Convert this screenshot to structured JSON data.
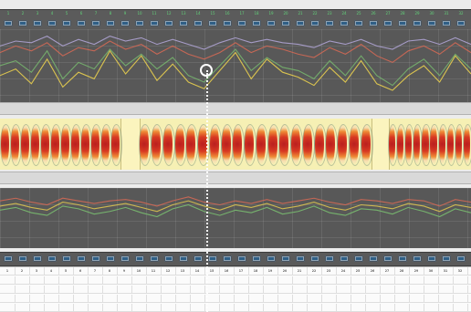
{
  "window": {
    "title": ""
  },
  "top_strip": {
    "green_labels": [
      "1",
      "2",
      "3",
      "4",
      "5",
      "6",
      "7",
      "8",
      "9",
      "10",
      "11",
      "12",
      "13",
      "14",
      "15",
      "16",
      "17",
      "18",
      "19",
      "20",
      "21",
      "22",
      "23",
      "24",
      "25",
      "26",
      "27",
      "28",
      "29",
      "30",
      "31",
      "32"
    ],
    "gray_labels": [
      "",
      "",
      "",
      "",
      "",
      "",
      "",
      "",
      "",
      "",
      "",
      "",
      "",
      "",
      "",
      "",
      "",
      "",
      "",
      "",
      "",
      "",
      "",
      "",
      "",
      "",
      "",
      "",
      "",
      "",
      "",
      ""
    ]
  },
  "mid_strip": {
    "labels": [
      "",
      "",
      "",
      "",
      "",
      "",
      "",
      "",
      "",
      "",
      "",
      "",
      "",
      "",
      "",
      "",
      "",
      "",
      "",
      "",
      "",
      "",
      "",
      "",
      "",
      "",
      "",
      "",
      "",
      "",
      "",
      ""
    ]
  },
  "bottom_strip": {
    "labels": [
      "",
      "",
      "",
      "",
      "",
      "",
      "",
      "",
      "",
      "",
      "",
      "",
      "",
      "",
      "",
      "",
      "",
      "",
      "",
      "",
      "",
      "",
      "",
      "",
      "",
      "",
      "",
      "",
      "",
      "",
      "",
      ""
    ]
  },
  "chart_data": [
    {
      "type": "line",
      "series": [
        {
          "values": [
            14,
            18,
            9,
            24,
            7,
            16,
            12,
            29,
            15,
            26,
            11,
            21,
            10,
            6,
            17,
            28,
            12,
            24,
            16,
            13,
            8,
            19,
            10,
            23,
            9,
            5,
            14,
            20,
            10,
            26,
            15
          ]
        },
        {
          "values": [
            20,
            23,
            16,
            29,
            12,
            22,
            18,
            30,
            20,
            27,
            18,
            25,
            14,
            10,
            20,
            30,
            17,
            25,
            19,
            17,
            12,
            23,
            14,
            26,
            14,
            8,
            18,
            24,
            14,
            27,
            18
          ]
        },
        {
          "values": [
            28,
            32,
            29,
            34,
            26,
            31,
            29,
            35,
            30,
            33,
            27,
            32,
            27,
            24,
            28,
            34,
            28,
            32,
            30,
            27,
            25,
            31,
            27,
            33,
            26,
            22,
            29,
            32,
            27,
            34,
            28
          ]
        },
        {
          "values": [
            32,
            35,
            34,
            38,
            32,
            36,
            33,
            38,
            35,
            37,
            33,
            36,
            33,
            30,
            34,
            37,
            34,
            36,
            34,
            33,
            31,
            35,
            33,
            36,
            32,
            30,
            35,
            36,
            33,
            37,
            33
          ]
        }
      ]
    },
    {
      "type": "line",
      "series": [
        {
          "values": [
            26,
            28,
            24,
            22,
            29,
            27,
            23,
            25,
            28,
            24,
            21,
            27,
            30,
            25,
            22,
            26,
            24,
            28,
            23,
            25,
            29,
            24,
            22,
            27,
            26,
            23,
            28,
            25,
            21,
            27,
            24
          ]
        },
        {
          "values": [
            29,
            31,
            28,
            26,
            32,
            30,
            27,
            29,
            31,
            28,
            25,
            30,
            33,
            29,
            26,
            30,
            28,
            31,
            27,
            29,
            32,
            28,
            26,
            30,
            29,
            27,
            31,
            29,
            25,
            30,
            28
          ]
        },
        {
          "values": [
            33,
            35,
            32,
            30,
            35,
            33,
            31,
            33,
            34,
            32,
            29,
            33,
            36,
            32,
            30,
            33,
            31,
            34,
            31,
            33,
            35,
            32,
            30,
            34,
            33,
            31,
            34,
            33,
            29,
            34,
            32
          ]
        }
      ]
    }
  ],
  "table": {
    "rows": [
      [
        "1",
        "2",
        "3",
        "4",
        "5",
        "6",
        "7",
        "8",
        "9",
        "10",
        "11",
        "12",
        "13",
        "14",
        "15",
        "16",
        "17",
        "18",
        "19",
        "20",
        "21",
        "22",
        "23",
        "24",
        "25",
        "26",
        "27",
        "28",
        "29",
        "30",
        "31",
        "32"
      ],
      [
        "",
        "",
        "",
        "",
        "",
        "",
        "",
        "",
        "",
        "",
        "",
        "",
        "",
        "",
        "",
        "",
        "",
        "",
        "",
        "",
        "",
        "",
        "",
        "",
        "",
        "",
        "",
        "",
        "",
        "",
        "",
        ""
      ],
      [
        "",
        "",
        "",
        "",
        "",
        "",
        "",
        "",
        "",
        "",
        "",
        "",
        "",
        "",
        "",
        "",
        "",
        "",
        "",
        "",
        "",
        "",
        "",
        "",
        "",
        "",
        "",
        "",
        "",
        "",
        "",
        ""
      ],
      [
        "",
        "",
        "",
        "",
        "",
        "",
        "",
        "",
        "",
        "",
        "",
        "",
        "",
        "",
        "",
        "",
        "",
        "",
        "",
        "",
        "",
        "",
        "",
        "",
        "",
        "",
        "",
        "",
        "",
        "",
        "",
        ""
      ],
      [
        "",
        "",
        "",
        "",
        "",
        "",
        "",
        "",
        "",
        "",
        "",
        "",
        "",
        "",
        "",
        "",
        "",
        "",
        "",
        "",
        "",
        "",
        "",
        "",
        "",
        "",
        "",
        "",
        "",
        "",
        "",
        ""
      ]
    ]
  },
  "colors": {
    "panel": "#585858",
    "strip": "#5b5b5b",
    "heat_bg": "#f6f0b4",
    "line1": "#e2c94f",
    "line2": "#78b86f",
    "line3": "#d96a55",
    "line4": "#b3a7d9",
    "cursor": "#ffffff"
  }
}
